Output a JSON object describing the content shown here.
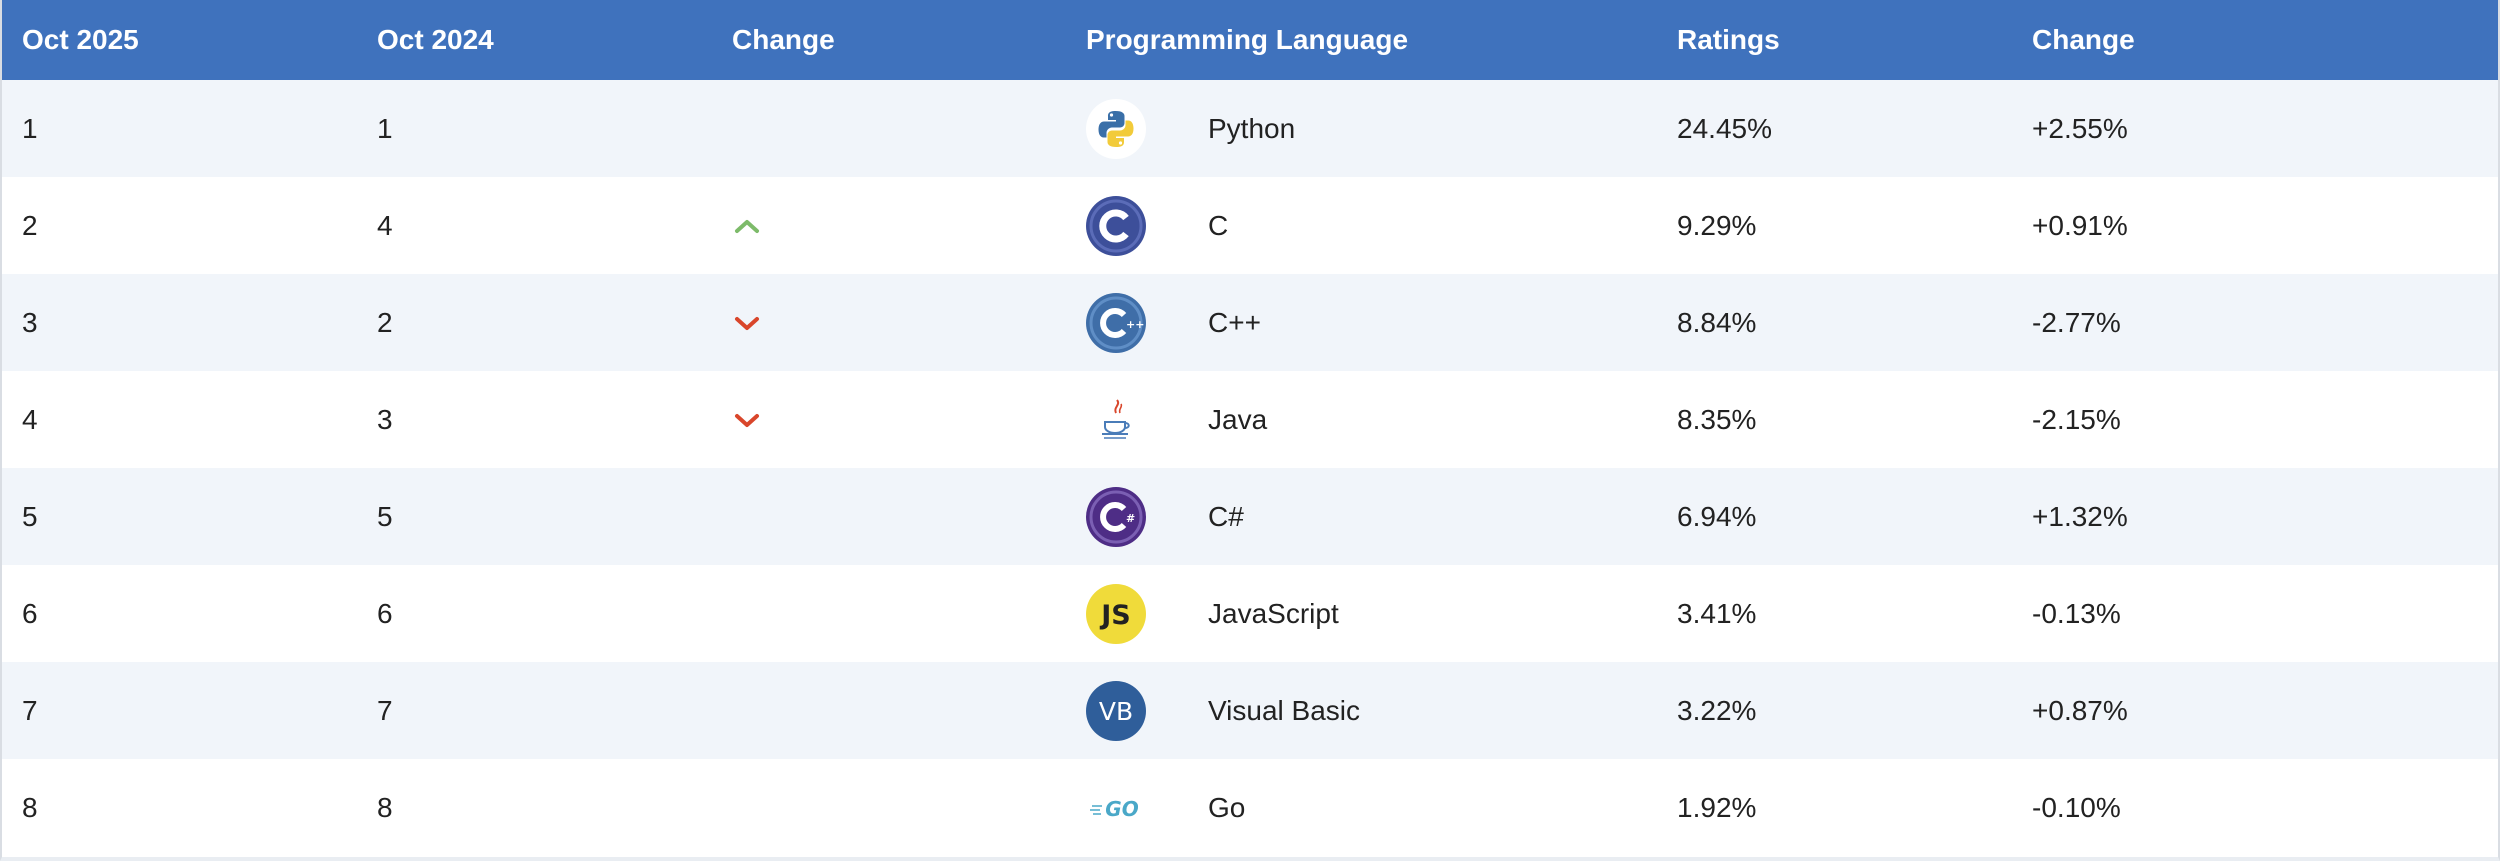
{
  "table": {
    "headers": {
      "current": "Oct 2025",
      "previous": "Oct 2024",
      "change": "Change",
      "language": "Programming Language",
      "ratings": "Ratings",
      "ratings_change": "Change"
    },
    "rows": [
      {
        "rank": "1",
        "prev_rank": "1",
        "trend": "none",
        "icon": "python-logo-icon",
        "language": "Python",
        "rating": "24.45%",
        "change": "+2.55%"
      },
      {
        "rank": "2",
        "prev_rank": "4",
        "trend": "up",
        "icon": "c-logo-icon",
        "language": "C",
        "rating": "9.29%",
        "change": "+0.91%"
      },
      {
        "rank": "3",
        "prev_rank": "2",
        "trend": "down",
        "icon": "cpp-logo-icon",
        "language": "C++",
        "rating": "8.84%",
        "change": "-2.77%"
      },
      {
        "rank": "4",
        "prev_rank": "3",
        "trend": "down",
        "icon": "java-logo-icon",
        "language": "Java",
        "rating": "8.35%",
        "change": "-2.15%"
      },
      {
        "rank": "5",
        "prev_rank": "5",
        "trend": "none",
        "icon": "csharp-logo-icon",
        "language": "C#",
        "rating": "6.94%",
        "change": "+1.32%"
      },
      {
        "rank": "6",
        "prev_rank": "6",
        "trend": "none",
        "icon": "javascript-logo-icon",
        "language": "JavaScript",
        "rating": "3.41%",
        "change": "-0.13%"
      },
      {
        "rank": "7",
        "prev_rank": "7",
        "trend": "none",
        "icon": "visual-basic-logo-icon",
        "language": "Visual Basic",
        "rating": "3.22%",
        "change": "+0.87%"
      },
      {
        "rank": "8",
        "prev_rank": "8",
        "trend": "none",
        "icon": "go-logo-icon",
        "language": "Go",
        "rating": "1.92%",
        "change": "-0.10%"
      }
    ]
  },
  "colors": {
    "header_bg": "#3f72bd",
    "row_alt_bg": "#f1f5fa",
    "trend_up": "#7dbb6a",
    "trend_down": "#d9462b"
  }
}
